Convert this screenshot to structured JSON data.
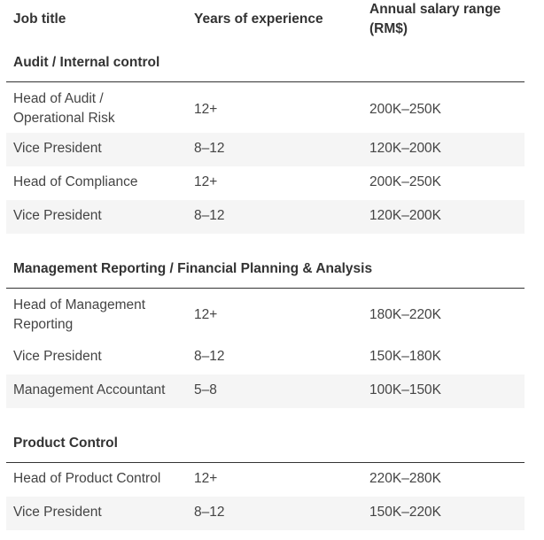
{
  "headers": {
    "job_title": "Job title",
    "years": "Years of experience",
    "salary_line1": "Annual salary range",
    "salary_line2": "(RM$)"
  },
  "sections": [
    {
      "title": "Audit / Internal control",
      "rows": [
        {
          "job_line1": "Head of Audit /",
          "job_line2": "Operational Risk",
          "years": "12+",
          "salary": "200K–250K"
        },
        {
          "job_line1": "Vice President",
          "years": "8–12",
          "salary": "120K–200K"
        },
        {
          "job_line1": "Head of Compliance",
          "years": "12+",
          "salary": "200K–250K"
        },
        {
          "job_line1": "Vice President",
          "years": "8–12",
          "salary": "120K–200K"
        }
      ]
    },
    {
      "title": "Management Reporting / Financial Planning & Analysis",
      "rows": [
        {
          "job_line1": "Head of Management",
          "job_line2": "Reporting",
          "years": "12+",
          "salary": "180K–220K"
        },
        {
          "job_line1": "Vice President",
          "years": "8–12",
          "salary": "150K–180K"
        },
        {
          "job_line1": "Management Accountant",
          "years": "5–8",
          "salary": "100K–150K"
        }
      ]
    },
    {
      "title": "Product Control",
      "rows": [
        {
          "job_line1": "Head of Product Control",
          "years": "12+",
          "salary": "220K–280K"
        },
        {
          "job_line1": "Vice President",
          "years": "8–12",
          "salary": "150K–220K"
        }
      ]
    }
  ]
}
